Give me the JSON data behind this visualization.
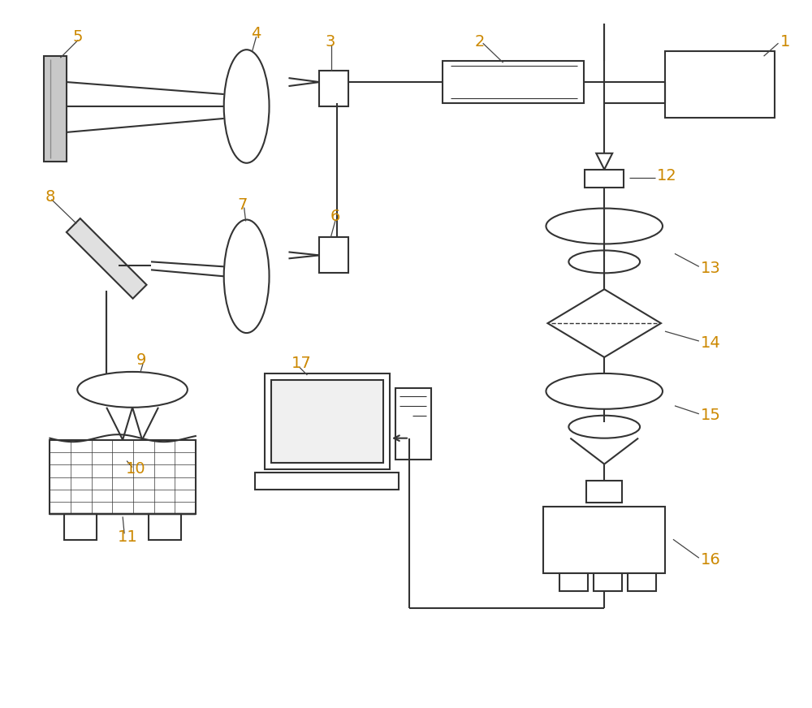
{
  "bg": "#ffffff",
  "lc": "#333333",
  "lw": 1.5,
  "ann_lc": "#444444",
  "label_color": "#cc8800"
}
